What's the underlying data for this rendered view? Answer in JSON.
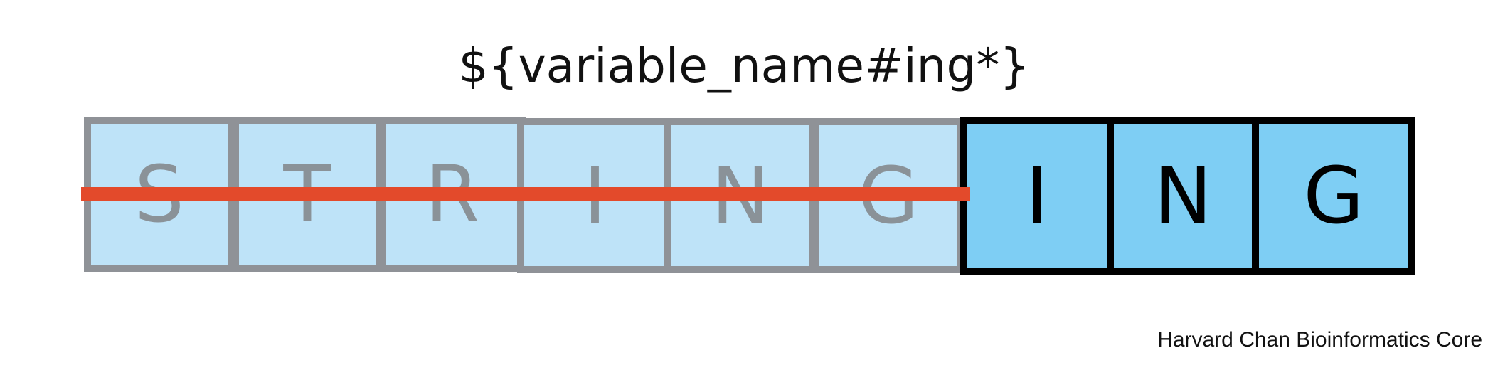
{
  "diagram": {
    "expression": "${variable_name#ing*}",
    "removed_letters": [
      "S",
      "T",
      "R",
      "I",
      "N",
      "G"
    ],
    "kept_letters": [
      "I",
      "N",
      "G"
    ],
    "colors": {
      "removed_fill": "#bee3f8",
      "removed_border": "#8f9297",
      "kept_fill": "#7ecef4",
      "kept_border": "#000000",
      "strike_line": "#e34a2b"
    }
  },
  "footer": {
    "credit": "Harvard Chan Bioinformatics Core"
  }
}
